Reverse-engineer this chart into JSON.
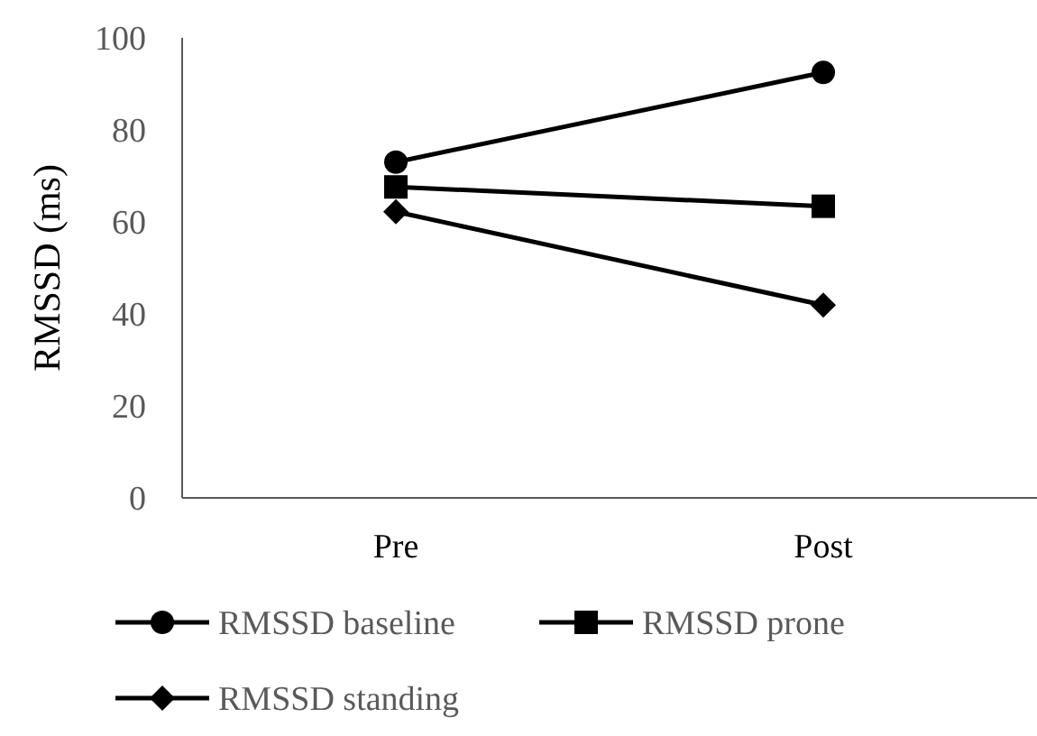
{
  "chart_data": {
    "type": "line",
    "ylabel": "RMSSD (ms)",
    "categories": [
      "Pre",
      "Post"
    ],
    "ylim": [
      0,
      100
    ],
    "yticks": [
      0,
      20,
      40,
      60,
      80,
      100
    ],
    "grid": false,
    "legend": "bottom",
    "series": [
      {
        "name": "RMSSD baseline",
        "color": "#000000",
        "marker": "circle",
        "values": [
          73,
          92.5
        ]
      },
      {
        "name": "RMSSD prone",
        "color": "#000000",
        "marker": "square",
        "values": [
          67.6,
          63.4
        ]
      },
      {
        "name": "RMSSD standing",
        "color": "#000000",
        "marker": "diamond",
        "values": [
          62.2,
          41.9
        ]
      }
    ]
  }
}
